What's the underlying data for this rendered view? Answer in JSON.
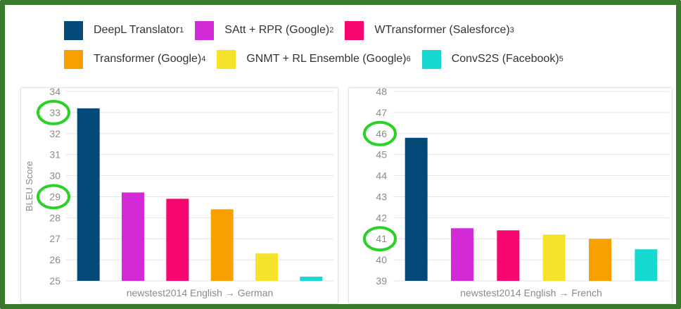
{
  "legend": [
    {
      "label": "DeepL Translator",
      "sup": "1",
      "color": "#034a78"
    },
    {
      "label": "SAtt + RPR (Google)",
      "sup": "2",
      "color": "#d22ad6"
    },
    {
      "label": "WTransformer (Salesforce)",
      "sup": "3",
      "color": "#f5076f"
    },
    {
      "label": "Transformer (Google)",
      "sup": "4",
      "color": "#f7a000"
    },
    {
      "label": "GNMT + RL Ensemble (Google)",
      "sup": "6",
      "color": "#f5e22a"
    },
    {
      "label": "ConvS2S (Facebook)",
      "sup": "5",
      "color": "#17d9d1"
    }
  ],
  "chart_data": [
    {
      "type": "bar",
      "xlabel": "newstest2014 English → German",
      "ylabel": "BLEU Score",
      "ylim": [
        25,
        34
      ],
      "yticks": [
        25,
        26,
        27,
        28,
        29,
        30,
        31,
        32,
        33,
        34
      ],
      "grid": true,
      "categories": [
        "DeepL Translator",
        "SAtt + RPR (Google)",
        "WTransformer (Salesforce)",
        "Transformer (Google)",
        "GNMT + RL Ensemble (Google)",
        "ConvS2S (Facebook)"
      ],
      "values": [
        33.2,
        29.2,
        28.9,
        28.4,
        26.3,
        25.2
      ],
      "colors": [
        "#034a78",
        "#d22ad6",
        "#f5076f",
        "#f7a000",
        "#f5e22a",
        "#17d9d1"
      ],
      "highlighted_ticks": [
        33,
        29
      ]
    },
    {
      "type": "bar",
      "xlabel": "newstest2014 English → French",
      "ylabel": "",
      "ylim": [
        39,
        48
      ],
      "yticks": [
        39,
        40,
        41,
        42,
        43,
        44,
        45,
        46,
        47,
        48
      ],
      "grid": true,
      "categories": [
        "DeepL Translator",
        "SAtt + RPR (Google)",
        "WTransformer (Salesforce)",
        "GNMT + RL Ensemble (Google)",
        "Transformer (Google)",
        "ConvS2S (Facebook)"
      ],
      "values": [
        45.8,
        41.5,
        41.4,
        41.2,
        41.0,
        40.5
      ],
      "colors": [
        "#034a78",
        "#d22ad6",
        "#f5076f",
        "#f5e22a",
        "#f7a000",
        "#17d9d1"
      ],
      "highlighted_ticks": [
        46,
        41
      ]
    }
  ]
}
